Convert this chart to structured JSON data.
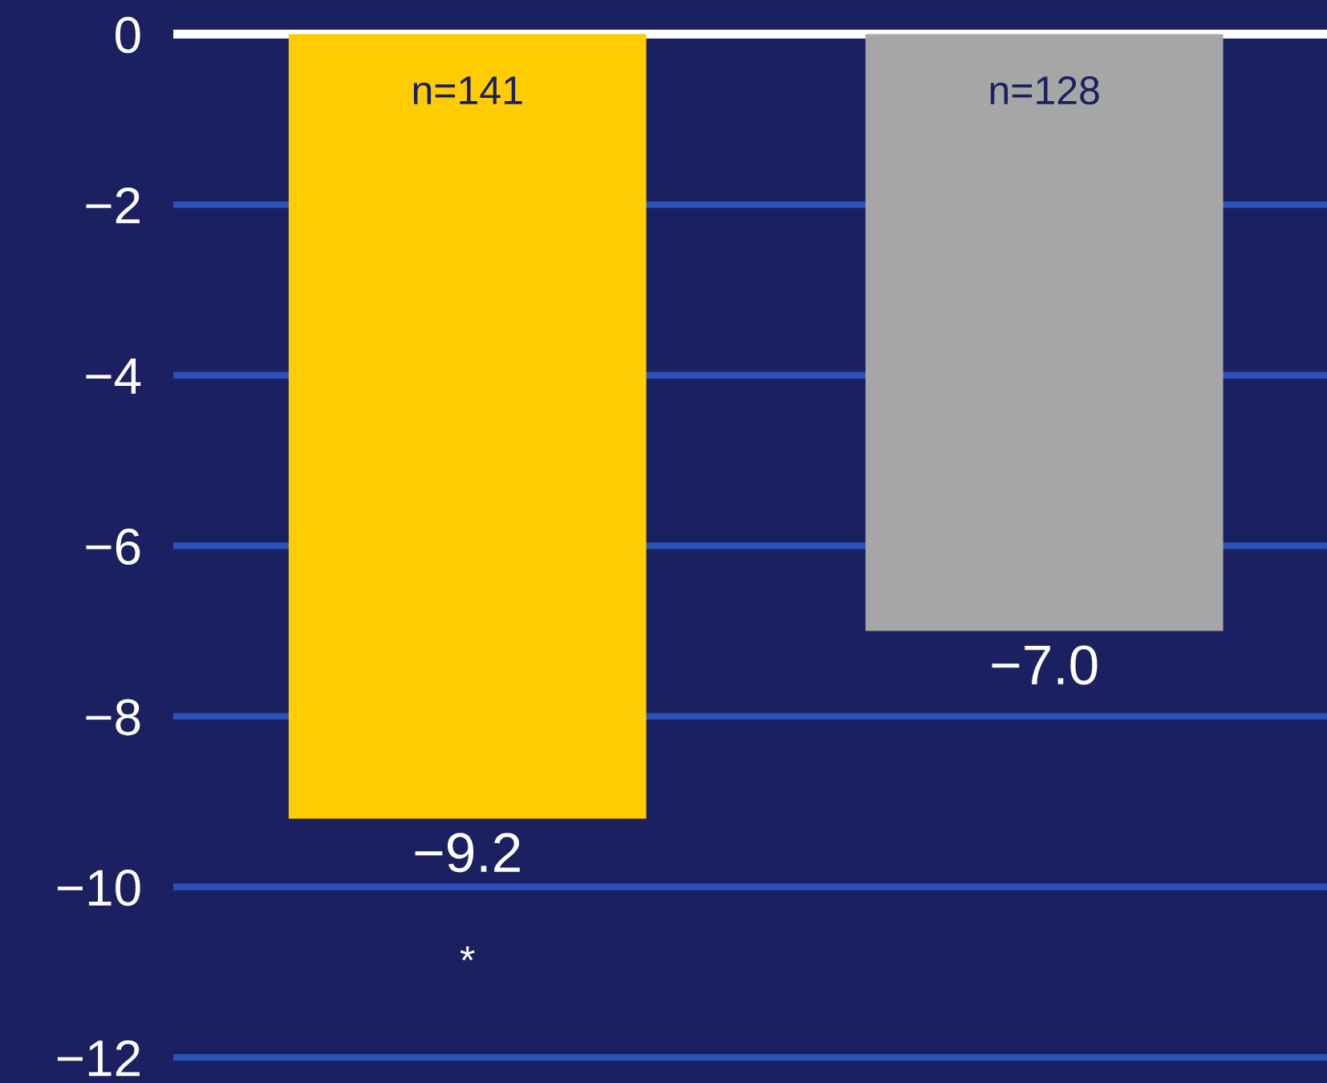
{
  "chart_data": {
    "type": "bar",
    "categories": [
      null,
      null
    ],
    "values": [
      -9.2,
      -7.0
    ],
    "colors": [
      "#ffcc00",
      "#a6a6a6"
    ],
    "value_labels": [
      "−9.2",
      "−7.0"
    ],
    "ylim": [
      -12.3,
      0.4
    ],
    "yticks": [
      {
        "value": 0,
        "label": "0"
      },
      {
        "value": -2,
        "label": "−2"
      },
      {
        "value": -4,
        "label": "−4"
      },
      {
        "value": -6,
        "label": "−6"
      },
      {
        "value": -8,
        "label": "−8"
      },
      {
        "value": -10,
        "label": "−10"
      },
      {
        "value": -12,
        "label": "−12"
      }
    ],
    "grid": "y",
    "ref_lines": [
      {
        "axis": "y",
        "value": 0,
        "color": "#ffffff"
      }
    ],
    "annotations": [
      "n=141",
      "n=128",
      "*"
    ],
    "tick_labels": "y"
  }
}
